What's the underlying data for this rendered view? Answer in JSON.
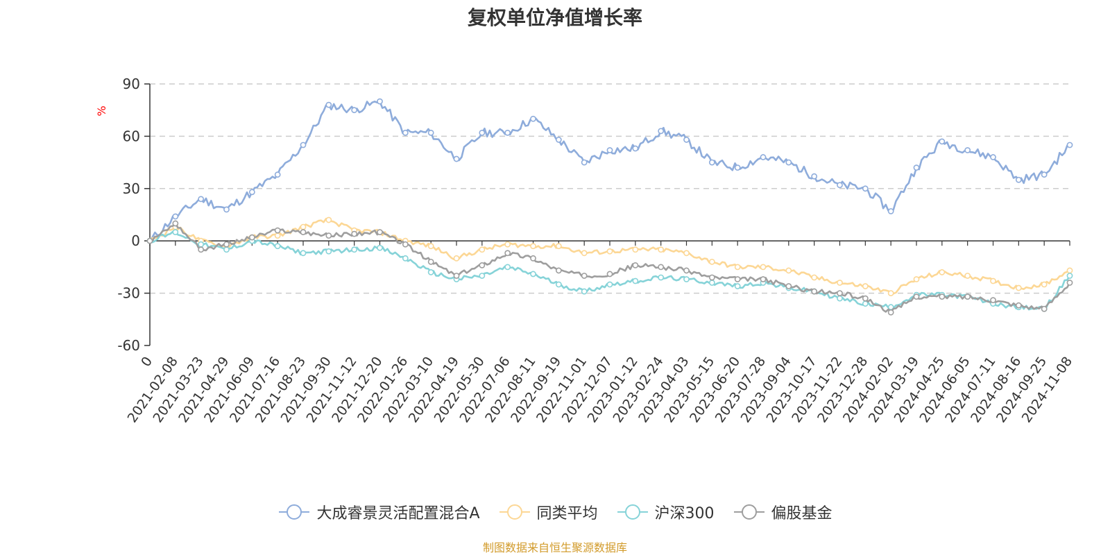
{
  "chart_data": {
    "type": "line",
    "title": "复权单位净值增长率",
    "ylabel": "%",
    "ylim": [
      -60,
      90
    ],
    "yticks": [
      90,
      60,
      30,
      0,
      -30,
      -60
    ],
    "xticks": [
      "0",
      "2021-02-08",
      "2021-03-23",
      "2021-04-29",
      "2021-06-09",
      "2021-07-16",
      "2021-08-23",
      "2021-09-30",
      "2021-11-12",
      "2021-12-20",
      "2022-01-26",
      "2022-03-10",
      "2022-04-19",
      "2022-05-30",
      "2022-07-06",
      "2022-08-11",
      "2022-09-19",
      "2022-11-01",
      "2022-12-07",
      "2023-01-12",
      "2023-02-24",
      "2023-04-03",
      "2023-05-15",
      "2023-06-20",
      "2023-07-28",
      "2023-09-04",
      "2023-10-17",
      "2023-11-22",
      "2023-12-28",
      "2024-02-02",
      "2024-03-19",
      "2024-04-25",
      "2024-06-05",
      "2024-07-11",
      "2024-08-16",
      "2024-09-25",
      "2024-11-08"
    ],
    "series": [
      {
        "name": "大成睿景灵活配置混合A",
        "color": "#8eacdb",
        "values": [
          0,
          14,
          24,
          18,
          28,
          38,
          55,
          78,
          75,
          80,
          62,
          62,
          47,
          62,
          62,
          70,
          58,
          45,
          52,
          53,
          63,
          58,
          45,
          42,
          48,
          45,
          37,
          32,
          30,
          17,
          42,
          57,
          52,
          48,
          35,
          38,
          55
        ]
      },
      {
        "name": "同类平均",
        "color": "#fcd795",
        "values": [
          0,
          8,
          0,
          -3,
          2,
          3,
          8,
          12,
          6,
          5,
          0,
          -3,
          -10,
          -5,
          -2,
          -3,
          -3,
          -7,
          -6,
          -5,
          -5,
          -7,
          -12,
          -15,
          -15,
          -17,
          -21,
          -24,
          -26,
          -30,
          -22,
          -18,
          -20,
          -23,
          -27,
          -25,
          -17
        ]
      },
      {
        "name": "沪深300",
        "color": "#86d3d8",
        "values": [
          0,
          5,
          -2,
          -5,
          0,
          -3,
          -7,
          -6,
          -5,
          -4,
          -10,
          -18,
          -22,
          -20,
          -15,
          -19,
          -25,
          -29,
          -25,
          -23,
          -21,
          -22,
          -24,
          -26,
          -24,
          -27,
          -29,
          -33,
          -36,
          -38,
          -31,
          -31,
          -32,
          -36,
          -38,
          -39,
          -20
        ]
      },
      {
        "name": "偏股基金",
        "color": "#9e9e9e",
        "values": [
          0,
          10,
          -5,
          -2,
          2,
          6,
          5,
          3,
          4,
          5,
          -2,
          -12,
          -20,
          -14,
          -7,
          -10,
          -17,
          -20,
          -19,
          -14,
          -15,
          -17,
          -21,
          -22,
          -22,
          -26,
          -29,
          -30,
          -33,
          -41,
          -32,
          -32,
          -32,
          -34,
          -37,
          -39,
          -24
        ]
      }
    ]
  },
  "legend_labels": [
    "大成睿景灵活配置混合A",
    "同类平均",
    "沪深300",
    "偏股基金"
  ],
  "source": {
    "text": "制图数据来自恒生聚源数据库",
    "color": "#d29b2b"
  }
}
